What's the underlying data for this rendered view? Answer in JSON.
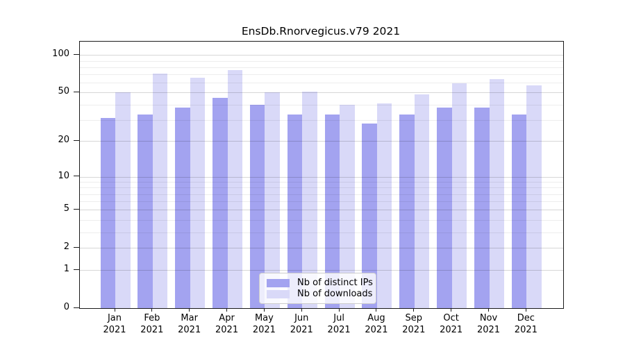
{
  "chart_data": {
    "type": "bar",
    "title": "EnsDb.Rnorvegicus.v79 2021",
    "categories": [
      "Jan",
      "Feb",
      "Mar",
      "Apr",
      "May",
      "Jun",
      "Jul",
      "Aug",
      "Sep",
      "Oct",
      "Nov",
      "Dec"
    ],
    "year_label": "2021",
    "series": [
      {
        "name": "Nb of distinct IPs",
        "color": "#a3a3f0",
        "values": [
          31,
          33,
          38,
          45,
          40,
          33,
          33,
          28,
          33,
          38,
          38,
          33
        ]
      },
      {
        "name": "Nb of downloads",
        "color": "#d9d9f8",
        "values": [
          50,
          71,
          66,
          76,
          50,
          51,
          40,
          41,
          48,
          59,
          64,
          57
        ]
      }
    ],
    "yscale": "log1p",
    "ylim": [
      0,
      128
    ],
    "yticks": [
      0,
      1,
      2,
      5,
      10,
      20,
      50,
      100
    ],
    "yticks_minor": [
      3,
      4,
      6,
      7,
      8,
      9,
      30,
      40,
      60,
      70,
      80,
      90
    ],
    "grid": "on",
    "legend_position": "lower-center-inside"
  },
  "colors": {
    "axis": "#1a1a1a",
    "grid_major": "#d6d6d6",
    "grid_minor": "#ececec",
    "legend_border": "#cccccc",
    "background": "#ffffff"
  }
}
